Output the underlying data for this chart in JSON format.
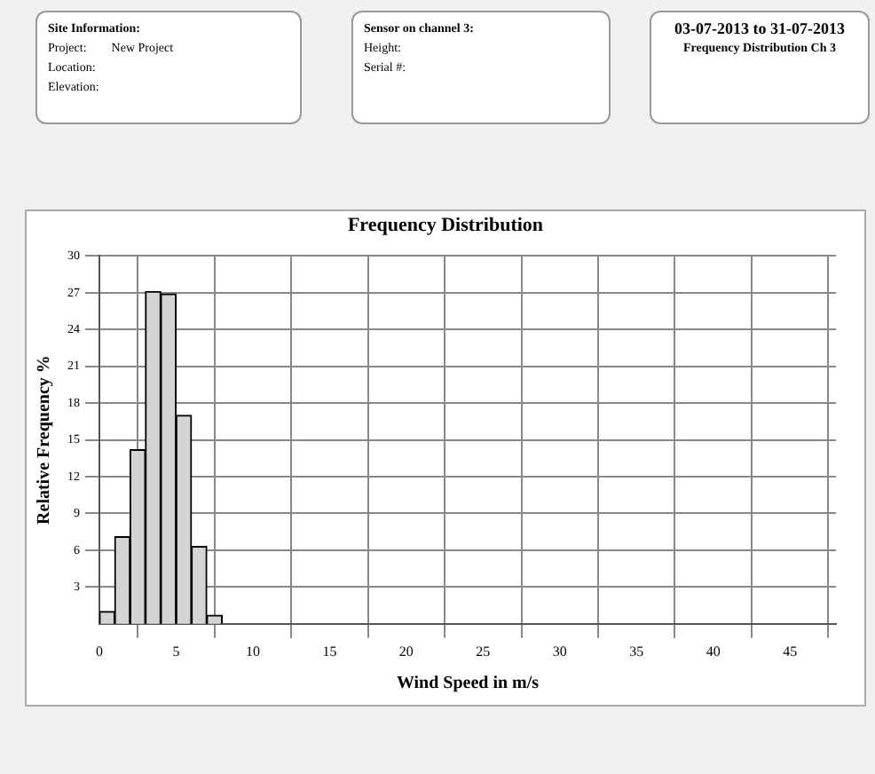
{
  "chart_data": {
    "type": "histogram",
    "title": "Frequency Distribution",
    "xlabel": "Wind Speed in m/s",
    "ylabel": "Relative Frequency %",
    "bins": [
      0,
      1,
      2,
      3,
      4,
      5,
      6,
      7,
      8
    ],
    "values": [
      1.0,
      7.1,
      14.2,
      27.1,
      26.9,
      17.0,
      6.3,
      0.7
    ],
    "color": "#d4d4d4",
    "xlim": [
      0,
      48
    ],
    "xticks": [
      0,
      5,
      10,
      15,
      20,
      25,
      30,
      35,
      40,
      45
    ],
    "ylim": [
      0,
      30
    ],
    "yticks": [
      3,
      6,
      9,
      12,
      15,
      18,
      21,
      24,
      27,
      30
    ],
    "grid": true,
    "annotations": [
      "Site Information:",
      "Project:",
      "New Project",
      "Location:",
      "Elevation:",
      "Sensor on channel 3:",
      "Height:",
      "Serial #:",
      "03-07-2013 to 31-07-2013",
      "Frequency Distribution Ch 3"
    ]
  }
}
